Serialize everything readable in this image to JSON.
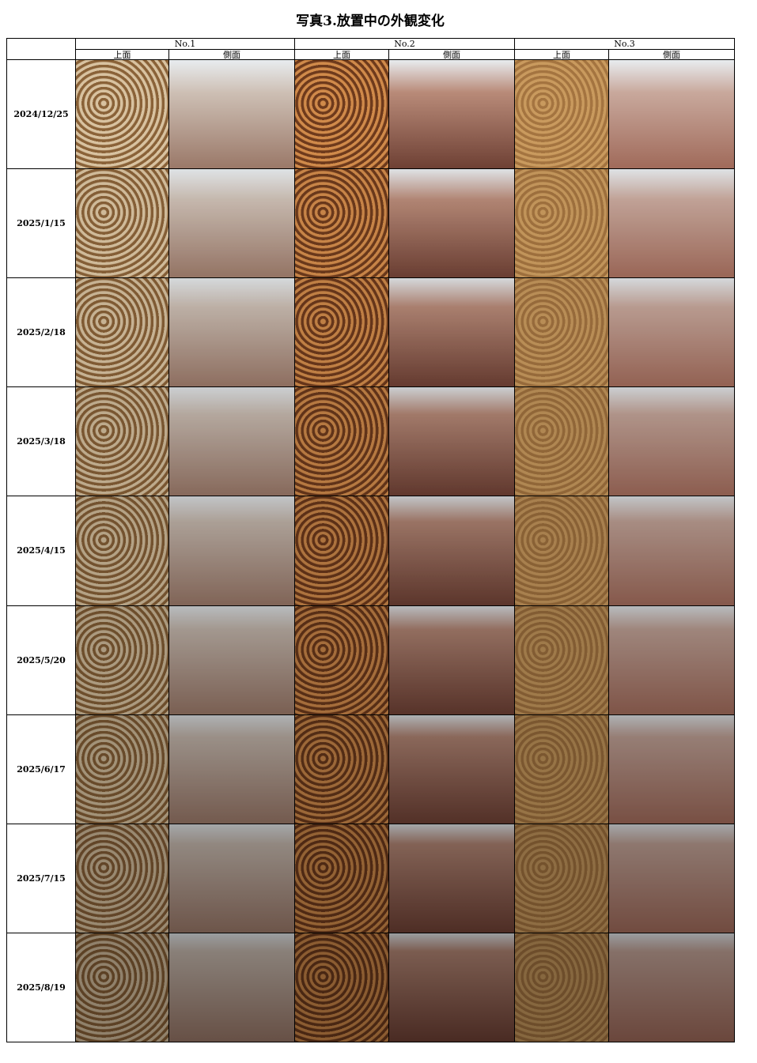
{
  "header": {
    "title": "写真3.放置中の外観変化"
  },
  "table": {
    "groups": [
      "No.1",
      "No.2",
      "No.3"
    ],
    "subheaders": [
      "上面",
      "側面",
      "上面",
      "側面",
      "上面",
      "側面"
    ],
    "rows": [
      "2024/12/25",
      "2025/1/15",
      "2025/2/18",
      "2025/3/18",
      "2025/4/15",
      "2025/5/20",
      "2025/6/17",
      "2025/7/15",
      "2025/8/19"
    ]
  }
}
